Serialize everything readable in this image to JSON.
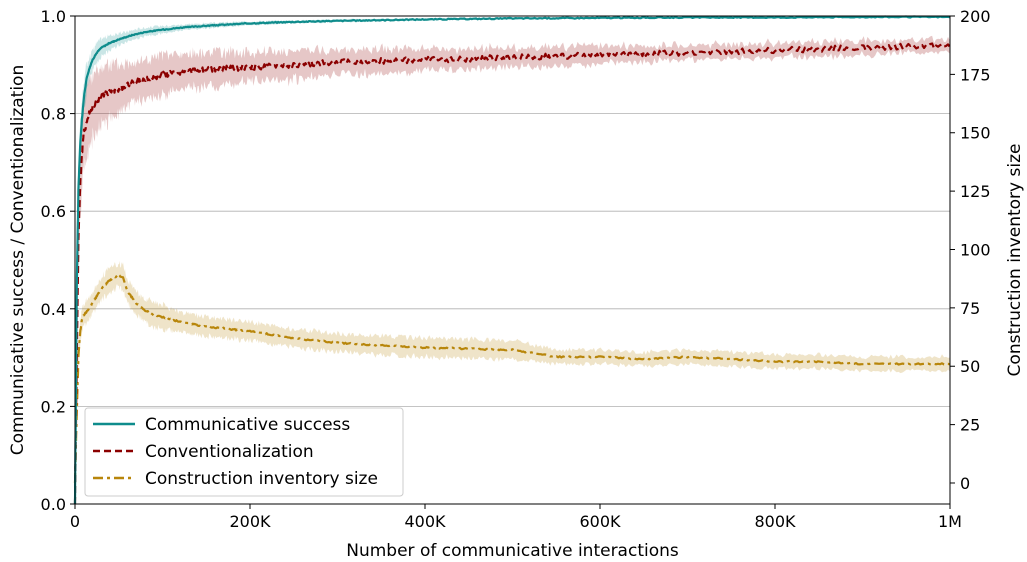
{
  "chart_data": {
    "type": "line",
    "xlabel": "Number of communicative interactions",
    "ylabel_left": "Communicative success / Conventionalization",
    "ylabel_right": "Construction inventory size",
    "xlim": [
      0,
      1000000
    ],
    "ylim_left": [
      0,
      1
    ],
    "ylim_right": [
      -9,
      200
    ],
    "x_ticks": [
      0,
      200000,
      400000,
      600000,
      800000,
      1000000
    ],
    "x_tick_labels": [
      "0",
      "200K",
      "400K",
      "600K",
      "800K",
      "1M"
    ],
    "y_left_ticks": [
      0,
      0.2,
      0.4,
      0.6,
      0.8,
      1.0
    ],
    "y_left_tick_labels": [
      "0.0",
      "0.2",
      "0.4",
      "0.6",
      "0.8",
      "1.0"
    ],
    "y_right_ticks": [
      0,
      25,
      50,
      75,
      100,
      125,
      150,
      175,
      200
    ],
    "y_right_tick_labels": [
      "0",
      "25",
      "50",
      "75",
      "100",
      "125",
      "150",
      "175",
      "200"
    ],
    "grid": "horizontal",
    "legend_position": "bottom-left",
    "series": [
      {
        "name": "Communicative success",
        "axis": "left",
        "style": "solid",
        "color": "#0e8c8c",
        "x": [
          0,
          2000,
          4000,
          6000,
          8000,
          10000,
          13000,
          16000,
          20000,
          25000,
          30000,
          40000,
          50000,
          60000,
          70000,
          80000,
          100000,
          120000,
          150000,
          200000,
          250000,
          300000,
          400000,
          500000,
          600000,
          700000,
          800000,
          900000,
          1000000
        ],
        "y": [
          0.0,
          0.45,
          0.65,
          0.74,
          0.79,
          0.83,
          0.87,
          0.89,
          0.91,
          0.925,
          0.935,
          0.945,
          0.952,
          0.958,
          0.963,
          0.967,
          0.972,
          0.976,
          0.98,
          0.985,
          0.988,
          0.99,
          0.993,
          0.995,
          0.996,
          0.997,
          0.997,
          0.998,
          0.998
        ],
        "band": [
          0.0,
          0.06,
          0.05,
          0.04,
          0.035,
          0.03,
          0.03,
          0.025,
          0.02,
          0.02,
          0.018,
          0.015,
          0.012,
          0.01,
          0.01,
          0.009,
          0.008,
          0.006,
          0.005,
          0.004,
          0.003,
          0.003,
          0.002,
          0.002,
          0.002,
          0.002,
          0.002,
          0.001,
          0.001
        ]
      },
      {
        "name": "Conventionalization",
        "axis": "left",
        "style": "dashed",
        "color": "#8b0000",
        "x": [
          0,
          2000,
          4000,
          6000,
          8000,
          10000,
          13000,
          16000,
          20000,
          25000,
          30000,
          40000,
          50000,
          60000,
          70000,
          80000,
          100000,
          120000,
          150000,
          200000,
          250000,
          300000,
          350000,
          400000,
          450000,
          500000,
          600000,
          700000,
          800000,
          900000,
          1000000
        ],
        "y": [
          0.0,
          0.3,
          0.55,
          0.66,
          0.72,
          0.76,
          0.78,
          0.8,
          0.815,
          0.825,
          0.835,
          0.845,
          0.85,
          0.86,
          0.865,
          0.87,
          0.88,
          0.885,
          0.89,
          0.895,
          0.9,
          0.905,
          0.908,
          0.91,
          0.912,
          0.915,
          0.92,
          0.925,
          0.93,
          0.935,
          0.94
        ],
        "band": [
          0.0,
          0.08,
          0.08,
          0.075,
          0.07,
          0.07,
          0.07,
          0.07,
          0.065,
          0.06,
          0.06,
          0.055,
          0.05,
          0.045,
          0.045,
          0.04,
          0.04,
          0.035,
          0.035,
          0.03,
          0.03,
          0.025,
          0.025,
          0.022,
          0.02,
          0.02,
          0.018,
          0.015,
          0.015,
          0.015,
          0.012
        ]
      },
      {
        "name": "Construction inventory size",
        "axis": "right",
        "style": "dashdot",
        "color": "#b8860b",
        "x": [
          0,
          2000,
          4000,
          6000,
          8000,
          10000,
          15000,
          20000,
          25000,
          30000,
          35000,
          40000,
          45000,
          50000,
          55000,
          60000,
          70000,
          80000,
          90000,
          100000,
          120000,
          150000,
          200000,
          250000,
          300000,
          400000,
          500000,
          550000,
          600000,
          650000,
          700000,
          800000,
          850000,
          900000,
          1000000
        ],
        "y": [
          0,
          30,
          55,
          65,
          70,
          72,
          74,
          77,
          80,
          83,
          85,
          87,
          88,
          89,
          88,
          82,
          77,
          74,
          72,
          71,
          69,
          67,
          65,
          62,
          60,
          58,
          57,
          54,
          54,
          53,
          54,
          52,
          52,
          51,
          51
        ],
        "band": [
          0,
          5,
          5,
          5,
          5,
          5,
          5,
          5,
          5,
          5,
          5,
          5,
          5,
          5,
          5,
          5,
          5,
          5,
          5,
          5,
          4,
          4,
          4,
          4,
          4,
          4,
          4,
          3,
          3,
          3,
          3,
          3,
          3,
          3,
          3
        ]
      }
    ]
  }
}
